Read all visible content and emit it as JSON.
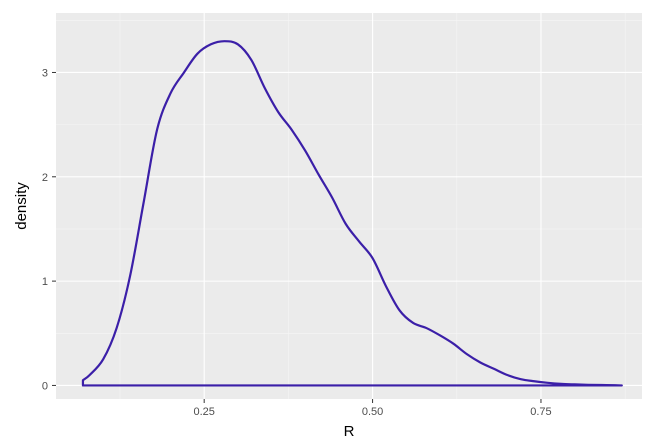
{
  "chart_data": {
    "type": "line",
    "title": "",
    "xlabel": "R",
    "ylabel": "density",
    "xlim": [
      0.03,
      0.9
    ],
    "ylim": [
      -0.13,
      3.57
    ],
    "x_ticks": [
      0.25,
      0.5,
      0.75
    ],
    "x_tick_labels": [
      "0.25",
      "0.50",
      "0.75"
    ],
    "y_ticks": [
      0,
      1,
      2,
      3
    ],
    "y_tick_labels": [
      "0",
      "1",
      "2",
      "3"
    ],
    "grid": true,
    "legend": "none",
    "series": [
      {
        "x": [
          0.07,
          0.08,
          0.1,
          0.12,
          0.14,
          0.16,
          0.18,
          0.2,
          0.22,
          0.24,
          0.26,
          0.28,
          0.3,
          0.32,
          0.34,
          0.36,
          0.38,
          0.4,
          0.42,
          0.44,
          0.46,
          0.48,
          0.5,
          0.52,
          0.54,
          0.56,
          0.58,
          0.6,
          0.62,
          0.64,
          0.66,
          0.68,
          0.7,
          0.72,
          0.74,
          0.76,
          0.78,
          0.8,
          0.82,
          0.84,
          0.86,
          0.87
        ],
        "y": [
          0.05,
          0.1,
          0.25,
          0.55,
          1.05,
          1.75,
          2.45,
          2.8,
          3.0,
          3.18,
          3.27,
          3.3,
          3.27,
          3.12,
          2.85,
          2.62,
          2.45,
          2.25,
          2.02,
          1.8,
          1.55,
          1.38,
          1.22,
          0.95,
          0.72,
          0.6,
          0.55,
          0.48,
          0.4,
          0.3,
          0.22,
          0.16,
          0.1,
          0.06,
          0.04,
          0.025,
          0.015,
          0.01,
          0.006,
          0.004,
          0.002,
          0.0
        ]
      }
    ],
    "colors": {
      "line": "#3b1fa8",
      "panel_bg": "#ebebeb",
      "grid_major": "#ffffff",
      "grid_minor": "#f5f5f5",
      "tick": "#333333"
    }
  }
}
